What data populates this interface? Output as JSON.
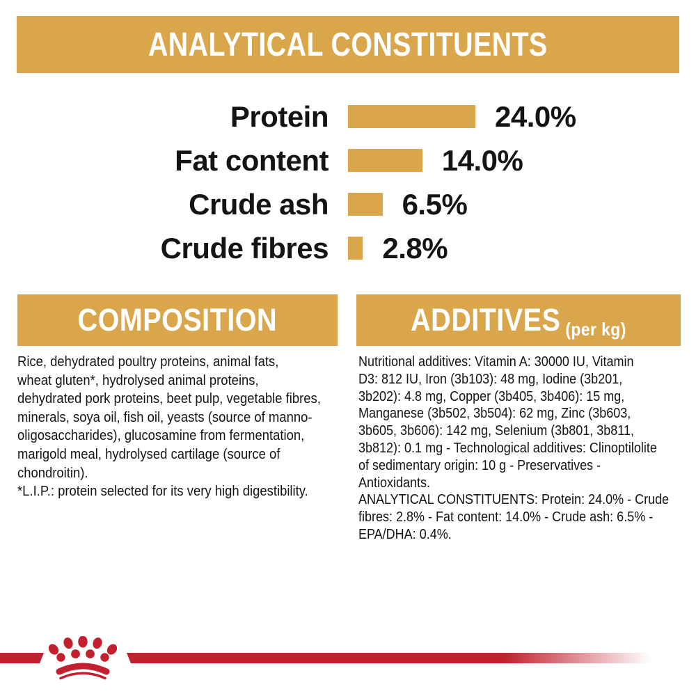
{
  "colors": {
    "gold": "#D9A64B",
    "red": "#C2202E",
    "text": "#141414",
    "white": "#FFFFFF"
  },
  "header": {
    "title": "ANALYTICAL CONSTITUENTS"
  },
  "chart_data": {
    "type": "bar",
    "orientation": "horizontal",
    "categories": [
      "Protein",
      "Fat content",
      "Crude ash",
      "Crude fibres"
    ],
    "values": [
      24.0,
      14.0,
      6.5,
      2.8
    ],
    "value_labels": [
      "24.0%",
      "14.0%",
      "6.5%",
      "2.8%"
    ],
    "unit": "%",
    "bar_color": "#D9A64B",
    "xlim": [
      0,
      30
    ],
    "grid": false,
    "legend": false
  },
  "sections": {
    "composition": {
      "title": "COMPOSITION",
      "body_lines": [
        "Rice, dehydrated poultry proteins, animal fats,",
        "wheat gluten*, hydrolysed animal proteins,",
        "dehydrated pork proteins, beet pulp, vegetable fibres,",
        "minerals, soya oil, fish oil, yeasts (source of manno-",
        "oligosaccharides), glucosamine from fermentation,",
        "marigold meal, hydrolysed cartilage (source of",
        "chondroitin).",
        "*L.I.P.: protein selected for its very high digestibility."
      ]
    },
    "additives": {
      "title": "ADDITIVES",
      "title_suffix": "(per kg)",
      "body_lines": [
        "Nutritional additives: Vitamin A: 30000 IU, Vitamin",
        "D3: 812 IU, Iron (3b103): 48 mg, Iodine (3b201,",
        "3b202): 4.8 mg, Copper (3b405, 3b406): 15 mg,",
        "Manganese (3b502, 3b504): 62 mg, Zinc (3b603,",
        "3b605, 3b606): 142 mg, Selenium (3b801, 3b811,",
        "3b812): 0.1 mg - Technological additives: Clinoptilolite",
        "of sedimentary origin: 10 g - Preservatives -",
        "Antioxidants.",
        "ANALYTICAL CONSTITUENTS: Protein: 24.0% - Crude",
        "fibres: 2.8% - Fat content: 14.0% - Crude ash: 6.5% -",
        "EPA/DHA: 0.4%."
      ]
    }
  },
  "footer": {
    "logo_icon": "royal-canin-crown-logo"
  }
}
